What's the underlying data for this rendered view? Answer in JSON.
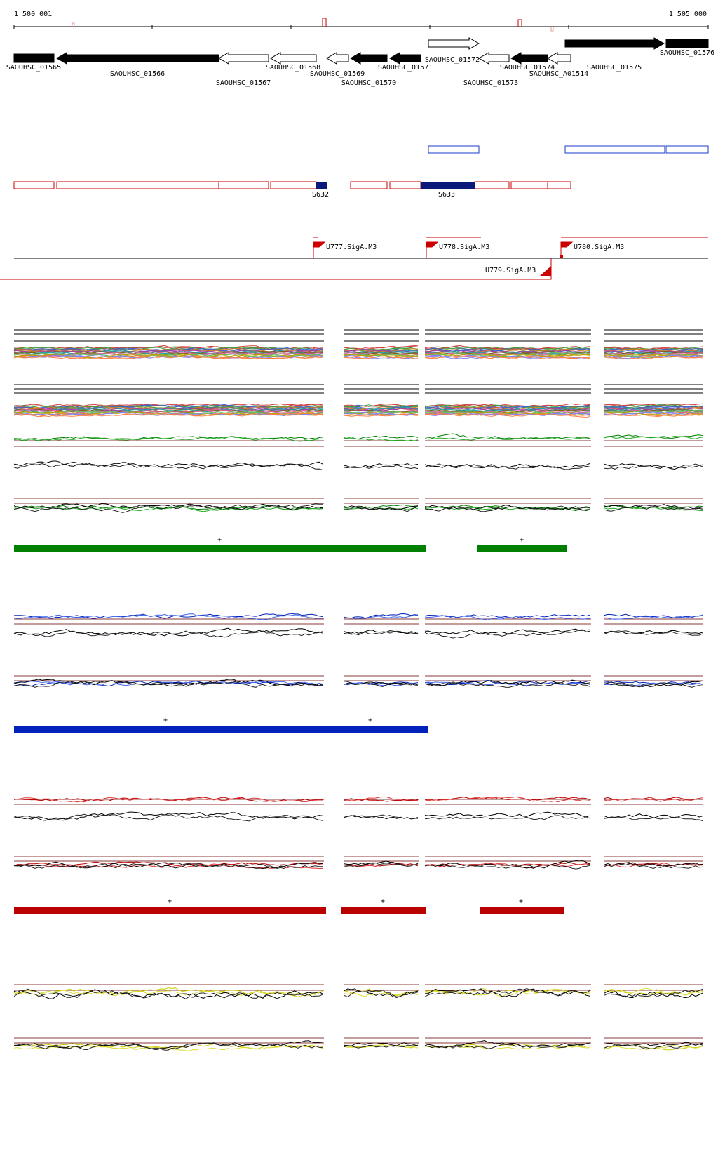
{
  "ruler": {
    "start_label": "1 500 001",
    "end_label": "1 505 000"
  },
  "genes": [
    {
      "name": "SAOUHSC_01565",
      "label": "SAOUHSC_01565",
      "x1": 20,
      "x2": 77,
      "strand": "-",
      "fill": "black",
      "row": 1
    },
    {
      "name": "SAOUHSC_01566",
      "label": "SAOUHSC_01566",
      "x1": 81,
      "x2": 312,
      "strand": "-",
      "fill": "black",
      "row": 1
    },
    {
      "name": "SAOUHSC_01567",
      "label": "SAOUHSC_01567",
      "x1": 312,
      "x2": 383,
      "strand": "-",
      "fill": "white",
      "row": 1
    },
    {
      "name": "SAOUHSC_01568",
      "label": "SAOUHSC_01568",
      "x1": 386,
      "x2": 451,
      "strand": "-",
      "fill": "white",
      "row": 1
    },
    {
      "name": "SAOUHSC_01569",
      "label": "SAOUHSC_01569",
      "x1": 466,
      "x2": 497,
      "strand": "-",
      "fill": "white",
      "row": 1
    },
    {
      "name": "SAOUHSC_01570",
      "label": "SAOUHSC_01570",
      "x1": 500,
      "x2": 552,
      "strand": "-",
      "fill": "black",
      "row": 1
    },
    {
      "name": "SAOUHSC_01571",
      "label": "SAOUHSC_01571",
      "x1": 556,
      "x2": 600,
      "strand": "-",
      "fill": "black",
      "row": 1
    },
    {
      "name": "SAOUHSC_01572",
      "label": "SAOUHSC_01572",
      "x1": 611,
      "x2": 683,
      "strand": "+",
      "fill": "white",
      "row": 0
    },
    {
      "name": "SAOUHSC_01573",
      "label": "SAOUHSC_01573",
      "x1": 683,
      "x2": 726,
      "strand": "-",
      "fill": "white",
      "row": 1
    },
    {
      "name": "SAOUHSC_01574",
      "label": "SAOUHSC_01574",
      "x1": 729,
      "x2": 781,
      "strand": "-",
      "fill": "black",
      "row": 1
    },
    {
      "name": "SAOUHSC_A01514",
      "label": "SAOUHSC_A01514",
      "x1": 781,
      "x2": 814,
      "strand": "-",
      "fill": "white",
      "row": 1
    },
    {
      "name": "SAOUHSC_01575",
      "label": "SAOUHSC_01575",
      "x1": 806,
      "x2": 947,
      "strand": "+",
      "fill": "black",
      "row": 0
    },
    {
      "name": "SAOUHSC_01576",
      "label": "SAOUHSC_01576",
      "x1": 950,
      "x2": 1010,
      "strand": "+",
      "fill": "black",
      "row": 0
    }
  ],
  "transcripts": {
    "S632": "S632",
    "S633": "S633"
  },
  "promoters": {
    "U777": "U777.SigA.M3",
    "U778": "U778.SigA.M3",
    "U779": "U779.SigA.M3",
    "U780": "U780.SigA.M3"
  },
  "condition_colors": {
    "multi": "#888888",
    "green": "#008000",
    "blue": "#0022bb",
    "red": "#bb0000",
    "yellow": "#cccc00"
  },
  "segment_marks": {
    "plus": "+"
  }
}
